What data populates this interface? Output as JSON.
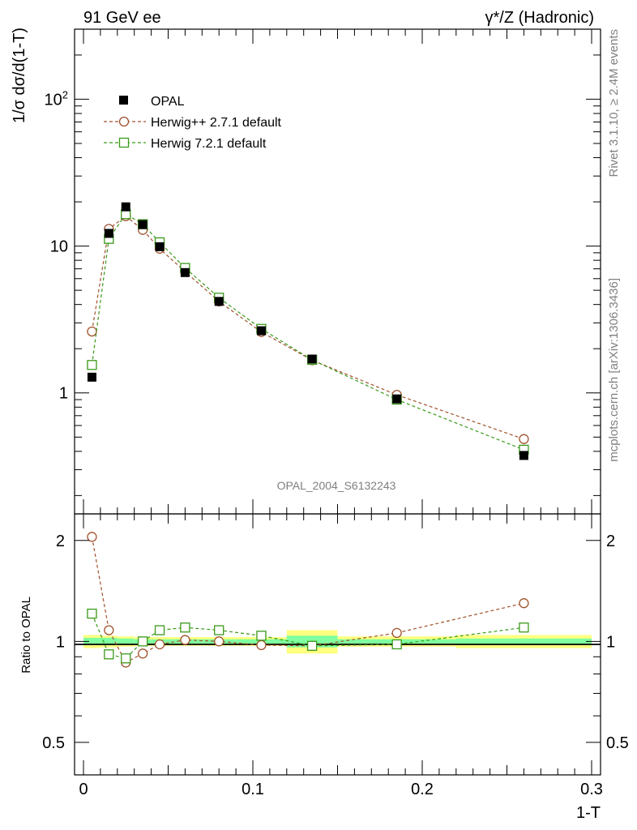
{
  "header": {
    "left": "91 GeV ee",
    "right": "γ*/Z (Hadronic)"
  },
  "side_labels": {
    "rivet": "Rivet 3.1.10, ≥ 2.4M events",
    "mcplots": "mcplots.cern.ch [arXiv:1306.3436]"
  },
  "analysis_tag": "OPAL_2004_S6132243",
  "colors": {
    "data": "#000000",
    "herwigpp": "#a0522d",
    "herwig7": "#3a9a1a",
    "band_inner": "#7fff9f",
    "band_outer": "#ffff80"
  },
  "chart_data": [
    {
      "type": "scatter",
      "panel": "main",
      "ylabel": "1/σ dσ/d(1-T)",
      "yscale": "log",
      "xlim": [
        -0.005,
        0.305
      ],
      "ylim": [
        0.15,
        300
      ],
      "y_ticks": [
        "1",
        "10",
        "10^2"
      ],
      "x": [
        0.005,
        0.015,
        0.025,
        0.035,
        0.045,
        0.06,
        0.08,
        0.105,
        0.135,
        0.185,
        0.26
      ],
      "series": [
        {
          "name": "OPAL",
          "marker": "filled-square",
          "values": [
            1.28,
            12.2,
            18.5,
            14.0,
            9.9,
            6.6,
            4.2,
            2.65,
            1.7,
            0.91,
            0.375
          ]
        },
        {
          "name": "Herwig++ 2.7.1 default",
          "marker": "open-circle",
          "line": "dashed",
          "values": [
            2.62,
            13.1,
            16.0,
            12.9,
            9.6,
            6.7,
            4.2,
            2.6,
            1.67,
            0.97,
            0.485
          ]
        },
        {
          "name": "Herwig 7.2.1 default",
          "marker": "open-square",
          "line": "dashed",
          "values": [
            1.55,
            11.2,
            16.5,
            14.1,
            10.6,
            7.1,
            4.45,
            2.73,
            1.68,
            0.9,
            0.41
          ]
        }
      ],
      "legend_position": "top-left",
      "grid": false
    },
    {
      "type": "scatter",
      "panel": "ratio",
      "ylabel": "Ratio to OPAL",
      "xlabel": "1-T",
      "yscale": "log",
      "xlim": [
        -0.005,
        0.305
      ],
      "ylim": [
        0.4,
        2.4
      ],
      "x_ticks": [
        "0",
        "0.1",
        "0.2",
        "0.3"
      ],
      "y_ticks": [
        "0.5",
        "1",
        "2"
      ],
      "x": [
        0.005,
        0.015,
        0.025,
        0.035,
        0.045,
        0.06,
        0.08,
        0.105,
        0.135,
        0.185,
        0.26
      ],
      "series": [
        {
          "name": "Herwig++ 2.7.1 default",
          "values": [
            2.05,
            1.08,
            0.865,
            0.92,
            0.98,
            1.01,
            1.0,
            0.975,
            0.97,
            1.06,
            1.3
          ]
        },
        {
          "name": "Herwig 7.2.1 default",
          "values": [
            1.21,
            0.915,
            0.89,
            1.0,
            1.08,
            1.1,
            1.08,
            1.04,
            0.97,
            0.98,
            1.1
          ]
        }
      ],
      "bands": [
        {
          "x0": 0.0,
          "x1": 0.01,
          "inner": [
            0.975,
            1.025
          ],
          "outer": [
            0.955,
            1.045
          ]
        },
        {
          "x0": 0.01,
          "x1": 0.02,
          "inner": [
            0.975,
            1.025
          ],
          "outer": [
            0.96,
            1.04
          ]
        },
        {
          "x0": 0.02,
          "x1": 0.03,
          "inner": [
            0.98,
            1.02
          ],
          "outer": [
            0.965,
            1.035
          ]
        },
        {
          "x0": 0.03,
          "x1": 0.04,
          "inner": [
            0.985,
            1.015
          ],
          "outer": [
            0.97,
            1.03
          ]
        },
        {
          "x0": 0.04,
          "x1": 0.05,
          "inner": [
            0.985,
            1.015
          ],
          "outer": [
            0.97,
            1.03
          ]
        },
        {
          "x0": 0.05,
          "x1": 0.07,
          "inner": [
            0.985,
            1.015
          ],
          "outer": [
            0.97,
            1.03
          ]
        },
        {
          "x0": 0.07,
          "x1": 0.09,
          "inner": [
            0.985,
            1.015
          ],
          "outer": [
            0.97,
            1.03
          ]
        },
        {
          "x0": 0.09,
          "x1": 0.12,
          "inner": [
            0.985,
            1.015
          ],
          "outer": [
            0.97,
            1.03
          ]
        },
        {
          "x0": 0.12,
          "x1": 0.15,
          "inner": [
            0.96,
            1.04
          ],
          "outer": [
            0.92,
            1.08
          ]
        },
        {
          "x0": 0.15,
          "x1": 0.22,
          "inner": [
            0.985,
            1.015
          ],
          "outer": [
            0.965,
            1.035
          ]
        },
        {
          "x0": 0.22,
          "x1": 0.3,
          "inner": [
            0.98,
            1.02
          ],
          "outer": [
            0.955,
            1.045
          ]
        }
      ],
      "grid": false
    }
  ]
}
